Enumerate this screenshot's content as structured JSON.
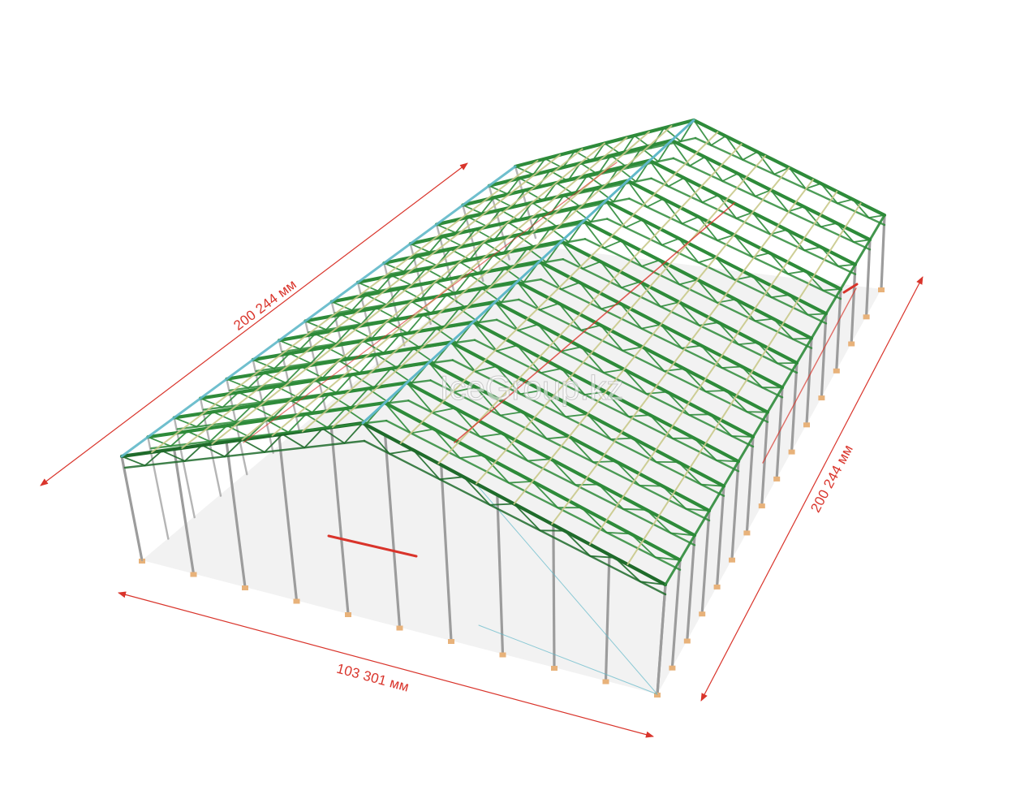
{
  "dimensions": {
    "length_left": "200 244 мм",
    "length_right": "200 244 мм",
    "width_front": "103 301 мм"
  },
  "watermark": "IceGroup.kz",
  "colors": {
    "dimension": "#d9342b",
    "truss": "#2e8b3a",
    "truss_dark": "#1f6b2b",
    "purlin": "#5fb8c9",
    "column": "#9c9c9c",
    "brace": "#d9342b",
    "base": "#e8b27a",
    "shadow": "#d9d9d9"
  }
}
